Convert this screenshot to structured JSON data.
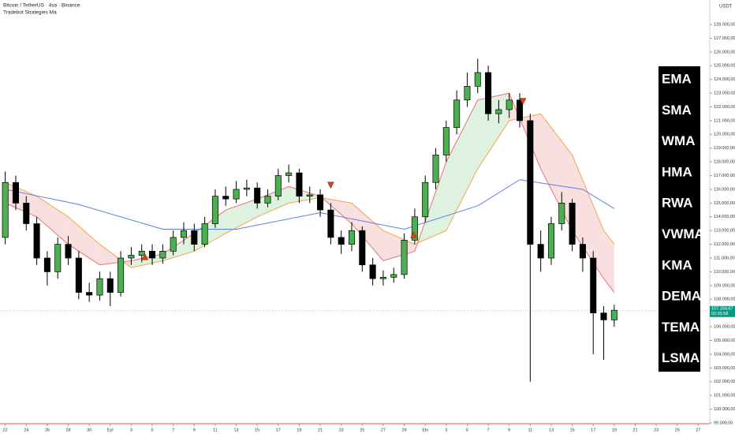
{
  "chart_data": {
    "type": "candlestick",
    "title": "Bitcoin / TetherUS · 4sa · Binance",
    "subtitle": "Tradebot Strategies Ma",
    "axis_unit": "USDT",
    "xlim": [
      -0.5,
      67.1
    ],
    "ylim": [
      98940,
      129780
    ],
    "xticks": [
      {
        "value": 0,
        "label": "22"
      },
      {
        "value": 2,
        "label": "24"
      },
      {
        "value": 4,
        "label": "26"
      },
      {
        "value": 6,
        "label": "28"
      },
      {
        "value": 8,
        "label": "30"
      },
      {
        "value": 10,
        "label": "Eyl"
      },
      {
        "value": 12,
        "label": "3"
      },
      {
        "value": 14,
        "label": "5"
      },
      {
        "value": 16,
        "label": "7"
      },
      {
        "value": 18,
        "label": "9"
      },
      {
        "value": 20,
        "label": "11"
      },
      {
        "value": 22,
        "label": "13"
      },
      {
        "value": 24,
        "label": "15"
      },
      {
        "value": 26,
        "label": "17"
      },
      {
        "value": 28,
        "label": "19"
      },
      {
        "value": 30,
        "label": "21"
      },
      {
        "value": 32,
        "label": "23"
      },
      {
        "value": 34,
        "label": "25"
      },
      {
        "value": 36,
        "label": "27"
      },
      {
        "value": 38,
        "label": "29"
      },
      {
        "value": 40,
        "label": "Eki"
      },
      {
        "value": 42,
        "label": "3"
      },
      {
        "value": 44,
        "label": "5"
      },
      {
        "value": 46,
        "label": "7"
      },
      {
        "value": 48,
        "label": "9"
      },
      {
        "value": 50,
        "label": "11"
      },
      {
        "value": 52,
        "label": "13"
      },
      {
        "value": 54,
        "label": "15"
      },
      {
        "value": 56,
        "label": "17"
      },
      {
        "value": 58,
        "label": "19"
      },
      {
        "value": 60,
        "label": "21"
      },
      {
        "value": 62,
        "label": "23"
      },
      {
        "value": 64,
        "label": "25"
      },
      {
        "value": 66,
        "label": "27"
      }
    ],
    "yticks": [
      {
        "value": 99000,
        "label": "99.000,00"
      },
      {
        "value": 100000,
        "label": "100.000,00"
      },
      {
        "value": 101000,
        "label": "101.000,00"
      },
      {
        "value": 102000,
        "label": "102.000,00"
      },
      {
        "value": 103000,
        "label": "103.000,00"
      },
      {
        "value": 104000,
        "label": "104.000,00"
      },
      {
        "value": 105000,
        "label": "105.000,00"
      },
      {
        "value": 106000,
        "label": "106.000,00"
      },
      {
        "value": 108000,
        "label": "108.000,00"
      },
      {
        "value": 109000,
        "label": "109.000,00"
      },
      {
        "value": 110000,
        "label": "110.000,00"
      },
      {
        "value": 111000,
        "label": "111.000,00"
      },
      {
        "value": 112000,
        "label": "112.000,00"
      },
      {
        "value": 113000,
        "label": "113.000,00"
      },
      {
        "value": 114000,
        "label": "114.000,00"
      },
      {
        "value": 115000,
        "label": "115.000,00"
      },
      {
        "value": 116000,
        "label": "116.000,00"
      },
      {
        "value": 117000,
        "label": "117.000,00"
      },
      {
        "value": 118000,
        "label": "118.000,00"
      },
      {
        "value": 119000,
        "label": "119.000,00"
      },
      {
        "value": 120000,
        "label": "120.000,00"
      },
      {
        "value": 121000,
        "label": "121.000,00"
      },
      {
        "value": 122000,
        "label": "122.000,00"
      },
      {
        "value": 123000,
        "label": "123.000,00"
      },
      {
        "value": 124000,
        "label": "124.000,00"
      },
      {
        "value": 125000,
        "label": "125.000,00"
      },
      {
        "value": 126000,
        "label": "126.000,00"
      },
      {
        "value": 127000,
        "label": "127.000,00"
      },
      {
        "value": 128000,
        "label": "128.000,00"
      }
    ],
    "current_price": {
      "value": 107164.67,
      "label": "107.164,67",
      "countdown": "02:35:58",
      "color": "#089981"
    },
    "up_color": "#4caf50",
    "down_color": "#000000",
    "x": [
      0,
      1,
      2,
      3,
      4,
      5,
      6,
      7,
      8,
      9,
      10,
      11,
      12,
      13,
      14,
      15,
      16,
      17,
      18,
      19,
      20,
      21,
      22,
      23,
      24,
      25,
      26,
      27,
      28,
      29,
      30,
      31,
      32,
      33,
      34,
      35,
      36,
      37,
      38,
      39,
      40,
      41,
      42,
      43,
      44,
      45,
      46,
      47,
      48,
      49,
      50,
      51,
      52,
      53,
      54,
      55,
      56,
      57,
      58
    ],
    "open": [
      112500,
      116500,
      115000,
      113500,
      111000,
      110000,
      112000,
      111000,
      108500,
      108300,
      109500,
      108500,
      111000,
      111200,
      111500,
      111000,
      111500,
      112500,
      113000,
      112000,
      113500,
      115500,
      115300,
      116000,
      116100,
      115000,
      115500,
      117000,
      117200,
      115500,
      115600,
      114500,
      112500,
      112000,
      113000,
      110500,
      109500,
      109600,
      109800,
      112300,
      114000,
      116500,
      118500,
      120500,
      122500,
      123500,
      124500,
      121500,
      121800,
      122500,
      121000,
      112000,
      111000,
      113500,
      115000,
      112000,
      111000,
      107000,
      106500
    ],
    "high": [
      117300,
      117000,
      115500,
      114000,
      111500,
      112500,
      112600,
      111500,
      109200,
      110000,
      110000,
      111500,
      111800,
      112000,
      112000,
      112000,
      113000,
      113600,
      113500,
      114000,
      116000,
      116200,
      116600,
      116700,
      116500,
      116000,
      117500,
      117800,
      117500,
      116200,
      116000,
      115000,
      113000,
      113600,
      113300,
      111000,
      110100,
      110300,
      112800,
      114600,
      117000,
      119000,
      121000,
      123200,
      124500,
      125500,
      125000,
      122500,
      123000,
      123000,
      121500,
      113000,
      114000,
      115800,
      115300,
      112500,
      111500,
      107500,
      107600
    ],
    "low": [
      112000,
      114500,
      113000,
      110500,
      109000,
      109500,
      110500,
      108000,
      107800,
      107900,
      107500,
      108200,
      110500,
      110700,
      110500,
      110600,
      111200,
      112000,
      111500,
      111800,
      113200,
      114800,
      115000,
      115500,
      114600,
      114700,
      115200,
      116500,
      115000,
      115000,
      114000,
      112000,
      111300,
      111500,
      110000,
      109000,
      109000,
      109200,
      109500,
      112000,
      113600,
      116000,
      118000,
      120000,
      122000,
      123000,
      121000,
      120800,
      121200,
      120500,
      102000,
      110000,
      110500,
      113000,
      111500,
      110000,
      104000,
      103600,
      106000
    ],
    "close": [
      116500,
      115000,
      113500,
      111000,
      110000,
      112000,
      111000,
      108500,
      108300,
      109500,
      108500,
      111000,
      111200,
      111500,
      111000,
      111500,
      112500,
      113000,
      112000,
      113500,
      115500,
      115300,
      116000,
      116100,
      115000,
      115500,
      117000,
      117200,
      115500,
      115600,
      114500,
      112500,
      112000,
      113000,
      110500,
      109500,
      109600,
      109800,
      112300,
      114000,
      116500,
      118500,
      120500,
      122500,
      123500,
      124500,
      121500,
      121800,
      122500,
      121000,
      112000,
      111000,
      113500,
      115000,
      112000,
      111000,
      107000,
      106500,
      107200
    ],
    "moving_average": {
      "color": "#5b7fe0",
      "x": [
        0,
        7,
        15,
        22,
        30,
        38,
        45,
        49,
        55,
        58
      ],
      "values": [
        116000,
        114900,
        113100,
        113100,
        114300,
        113100,
        114800,
        116700,
        116000,
        114600
      ]
    },
    "fast_line": {
      "color": "#e57373",
      "x": [
        0,
        3,
        6,
        9,
        12,
        15,
        18,
        21,
        24,
        27,
        30,
        33,
        36,
        39,
        42,
        45,
        48,
        51,
        54,
        57,
        58
      ],
      "values": [
        115000,
        114000,
        112000,
        110500,
        110800,
        111300,
        112800,
        114500,
        115300,
        116200,
        115500,
        113500,
        110800,
        111500,
        118000,
        122500,
        123000,
        117500,
        113000,
        109500,
        108500
      ]
    },
    "slow_line": {
      "color": "#f5a54a",
      "x": [
        0,
        3,
        6,
        9,
        12,
        15,
        18,
        21,
        24,
        27,
        30,
        33,
        36,
        39,
        42,
        45,
        48,
        51,
        54,
        57,
        58
      ],
      "values": [
        116500,
        115500,
        114000,
        112000,
        110300,
        110800,
        111500,
        112800,
        114000,
        115000,
        115400,
        115000,
        113000,
        112000,
        113000,
        117500,
        121000,
        121500,
        118500,
        113000,
        112000
      ]
    },
    "band_up_color": "rgba(76,175,80,0.18)",
    "band_down_color": "rgba(229,115,115,0.22)",
    "signals": {
      "x": [
        13.3,
        31,
        38.9,
        49.3
      ],
      "price": [
        111100,
        116300,
        112700,
        122400
      ],
      "direction": [
        "up",
        "down",
        "up",
        "down"
      ],
      "color": "#d84315"
    },
    "indicators": [
      "EMA",
      "SMA",
      "WMA",
      "HMA",
      "RWA",
      "VWMA",
      "KMA",
      "DEMA",
      "TEMA",
      "LSMA"
    ]
  }
}
